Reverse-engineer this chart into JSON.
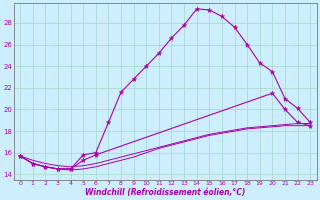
{
  "xlabel": "Windchill (Refroidissement éolien,°C)",
  "background_color": "#cceeff",
  "grid_color": "#aaddcc",
  "line_color": "#aa00aa",
  "xlim": [
    -0.5,
    23.5
  ],
  "ylim": [
    13.5,
    29.8
  ],
  "yticks": [
    14,
    16,
    18,
    20,
    22,
    24,
    26,
    28
  ],
  "xticks": [
    0,
    1,
    2,
    3,
    4,
    5,
    6,
    7,
    8,
    9,
    10,
    11,
    12,
    13,
    14,
    15,
    16,
    17,
    18,
    19,
    20,
    21,
    22,
    23
  ],
  "line1_x": [
    0,
    1,
    2,
    3,
    4,
    5,
    6,
    7,
    8,
    9,
    10,
    11,
    12,
    13,
    14,
    15,
    16,
    17,
    18,
    19,
    20,
    21,
    22,
    23
  ],
  "line1_y": [
    15.7,
    15.0,
    14.7,
    14.5,
    14.5,
    15.8,
    16.0,
    18.8,
    21.6,
    22.8,
    24.0,
    25.2,
    26.6,
    27.8,
    29.3,
    29.2,
    28.6,
    27.6,
    26.0,
    24.3,
    23.5,
    21.0,
    20.1,
    18.8
  ],
  "line2_x": [
    0,
    1,
    2,
    3,
    4,
    5,
    6,
    20,
    21,
    22,
    23
  ],
  "line2_y": [
    15.7,
    15.0,
    14.7,
    14.5,
    14.5,
    15.3,
    15.8,
    21.5,
    20.0,
    18.8,
    18.5
  ],
  "line3_x": [
    0,
    1,
    2,
    3,
    4,
    5,
    6,
    7,
    8,
    9,
    10,
    11,
    12,
    13,
    14,
    15,
    16,
    17,
    18,
    19,
    20,
    21,
    22,
    23
  ],
  "line3_y": [
    15.7,
    15.3,
    15.0,
    14.8,
    14.7,
    14.8,
    15.0,
    15.3,
    15.6,
    15.9,
    16.2,
    16.5,
    16.8,
    17.1,
    17.4,
    17.7,
    17.9,
    18.1,
    18.3,
    18.4,
    18.5,
    18.6,
    18.7,
    18.7
  ],
  "line4_x": [
    0,
    1,
    2,
    3,
    4,
    5,
    6,
    7,
    8,
    9,
    10,
    11,
    12,
    13,
    14,
    15,
    16,
    17,
    18,
    19,
    20,
    21,
    22,
    23
  ],
  "line4_y": [
    15.7,
    15.0,
    14.7,
    14.5,
    14.4,
    14.5,
    14.7,
    15.0,
    15.3,
    15.6,
    16.0,
    16.4,
    16.7,
    17.0,
    17.3,
    17.6,
    17.8,
    18.0,
    18.2,
    18.3,
    18.4,
    18.5,
    18.5,
    18.5
  ]
}
